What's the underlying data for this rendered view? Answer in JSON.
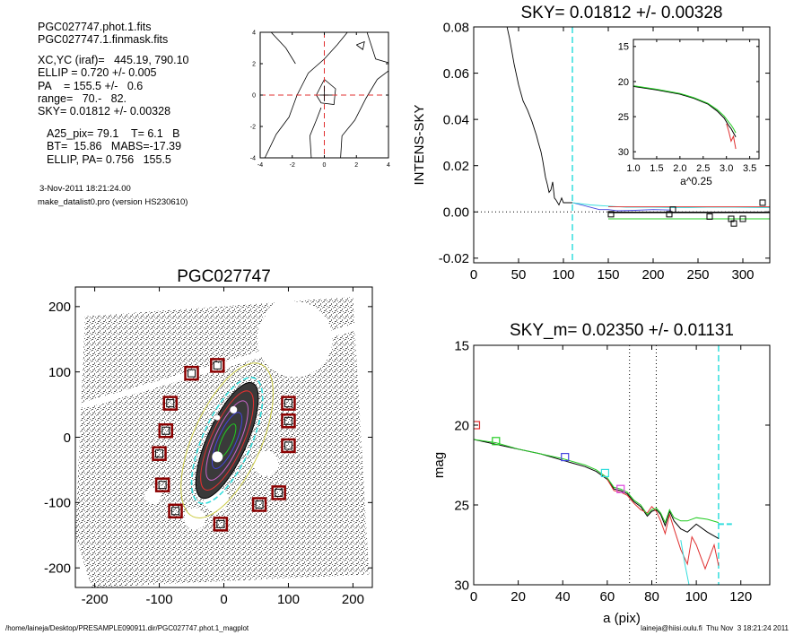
{
  "info": {
    "lines1": [
      "PGC027747.phot.1.fits",
      "PGC027747.1.finmask.fits"
    ],
    "lines2": [
      "XC,YC (iraf)=   445.19, 790.10",
      "ELLIP = 0.720 +/- 0.005",
      "PA    = 155.5 +/-   0.6",
      "range=   70.-   82.",
      "SKY= 0.01812 +/- 0.00328"
    ],
    "lines3": [
      "A25_pix= 79.1    T= 6.1   B",
      "BT=  15.86   MABS=-17.39",
      "ELLIP, PA= 0.756   155.5"
    ],
    "date": "3-Nov-2011 18:21:24.00",
    "program": "make_datalist0.pro (version HS230610)"
  },
  "footer": {
    "left": "/home/laineja/Desktop/PRESAMPLE090911.dir/PGC027747.phot.1_magplot",
    "right": "laineja@hiisi.oulu.fi  Thu Nov  3 18:21:24 2011"
  },
  "colors": {
    "red": "#e03030",
    "green": "#22cc22",
    "blue": "#4444dd",
    "cyan": "#33dddd",
    "magenta": "#dd44dd",
    "mask_box": "#8b0000",
    "grey": "#999999"
  },
  "chart_data": [
    {
      "id": "contour",
      "type": "scatter",
      "xlim": [
        -4,
        4
      ],
      "ylim": [
        -4,
        4
      ],
      "xticks": [
        -4,
        -2,
        0,
        2,
        4
      ],
      "yticks": [
        -4,
        -2,
        0,
        2,
        4
      ],
      "center_lines": {
        "x": 0,
        "y": 0
      }
    },
    {
      "id": "sky",
      "type": "line",
      "title": "SKY= 0.01812 +/- 0.00328",
      "ylabel": "INTENS-SKY",
      "xlim": [
        0,
        330
      ],
      "ylim": [
        -0.022,
        0.08
      ],
      "xticks": [
        0,
        50,
        100,
        150,
        200,
        250,
        300
      ],
      "yticks": [
        -0.02,
        0.0,
        0.02,
        0.04,
        0.06,
        0.08
      ],
      "ytick_labels": [
        "-0.02",
        "0.00",
        "0.02",
        "0.04",
        "0.06",
        "0.08"
      ],
      "vline_cyan": 110,
      "series": [
        {
          "color": "black",
          "x": [
            36,
            40,
            45,
            50,
            55,
            60,
            65,
            70,
            72,
            75,
            77,
            80,
            82,
            84,
            86,
            88,
            90,
            92,
            95,
            98,
            100,
            105,
            110
          ],
          "y": [
            0.082,
            0.075,
            0.064,
            0.055,
            0.048,
            0.044,
            0.039,
            0.033,
            0.03,
            0.026,
            0.022,
            0.015,
            0.012,
            0.0085,
            0.0095,
            0.013,
            0.006,
            0.005,
            0.003,
            0.006,
            0.004,
            0.004,
            0.004
          ]
        },
        {
          "color": "blue",
          "x": [
            110,
            120,
            130,
            140,
            150,
            160,
            180,
            200,
            220
          ],
          "y": [
            0.004,
            0.003,
            0.002,
            0.001,
            0.001,
            0.0005,
            0.0007,
            0.001,
            0.0008
          ]
        },
        {
          "color": "cyan",
          "x": [
            110,
            130,
            150,
            170,
            200,
            230,
            260,
            290,
            330
          ],
          "y": [
            0.004,
            0.003,
            0.0025,
            0.002,
            0.002,
            0.0018,
            0.002,
            0.002,
            0.0018
          ]
        },
        {
          "color": "green",
          "x": [
            150,
            330
          ],
          "y": [
            -0.003,
            -0.003
          ]
        },
        {
          "color": "red",
          "x": [
            150,
            330
          ],
          "y": [
            0.0022,
            0.0022
          ]
        },
        {
          "color": "black",
          "x": [
            150,
            330
          ],
          "y": [
            -0.0002,
            -0.0002
          ]
        }
      ],
      "squares": {
        "x": [
          153,
          218,
          222,
          263,
          287,
          290,
          300,
          322
        ],
        "y": [
          -0.001,
          -0.001,
          0.001,
          -0.002,
          -0.003,
          -0.005,
          -0.003,
          0.004
        ]
      },
      "inset": {
        "xlabel": "a^0.25",
        "xlim": [
          1.0,
          3.7
        ],
        "ylim": [
          31,
          14
        ],
        "xticks": [
          1.0,
          1.5,
          2.0,
          2.5,
          3.0,
          3.5
        ],
        "xtick_labels": [
          "1.0",
          "1.5",
          "2.0",
          "2.5",
          "3.0",
          "3.5"
        ],
        "yticks": [
          15,
          20,
          25,
          30
        ],
        "series": [
          {
            "color": "black",
            "x": [
              1.0,
              1.5,
              2.0,
              2.3,
              2.6,
              2.8,
              2.95,
              3.05,
              3.1,
              3.15,
              3.2
            ],
            "y": [
              20.7,
              21.2,
              21.8,
              22.4,
              23.2,
              24.2,
              25.2,
              26.3,
              26.7,
              27.3,
              27.9
            ]
          },
          {
            "color": "red",
            "x": [
              3.0,
              3.05,
              3.1,
              3.15,
              3.2
            ],
            "y": [
              26.0,
              27.1,
              28.5,
              27.8,
              29.6
            ]
          },
          {
            "color": "green",
            "x": [
              1.0,
              1.5,
              2.0,
              2.3,
              2.6,
              2.8,
              2.95,
              3.05,
              3.1,
              3.15,
              3.2
            ],
            "y": [
              20.6,
              21.1,
              21.7,
              22.3,
              23.1,
              24.0,
              24.9,
              25.8,
              26.2,
              26.7,
              27.3
            ]
          }
        ]
      }
    },
    {
      "id": "image",
      "type": "scatter",
      "title": "PGC027747",
      "xlim": [
        -230,
        230
      ],
      "ylim": [
        -230,
        230
      ],
      "xticks": [
        -200,
        -100,
        0,
        100,
        200
      ],
      "yticks": [
        -200,
        -100,
        0,
        100,
        200
      ],
      "mask_boxes": {
        "x": [
          -50,
          -10,
          -83,
          -90,
          -100,
          -95,
          -75,
          -5,
          55,
          100,
          100,
          100,
          85
        ],
        "y": [
          98,
          110,
          52,
          10,
          -25,
          -73,
          -113,
          -133,
          -103,
          52,
          25,
          -13,
          -85
        ]
      }
    },
    {
      "id": "mag",
      "type": "line",
      "title": "SKY_m=  0.02350 +/- 0.01131",
      "xlabel": "a (pix)",
      "ylabel": "mag",
      "xlim": [
        0,
        133
      ],
      "ylim": [
        30,
        15
      ],
      "xticks": [
        0,
        20,
        40,
        60,
        80,
        100,
        120
      ],
      "yticks": [
        15,
        20,
        25,
        30
      ],
      "vlines_dotted": [
        70,
        82
      ],
      "vline_cyan": 110,
      "series": [
        {
          "color": "black",
          "x": [
            0,
            10,
            20,
            30,
            40,
            50,
            55,
            60,
            63,
            66,
            69,
            72,
            75,
            78,
            80,
            82,
            84,
            86,
            88,
            90,
            93,
            96,
            100,
            105,
            110
          ],
          "y": [
            20.9,
            21.2,
            21.5,
            21.8,
            22.2,
            22.6,
            22.9,
            23.4,
            24.0,
            24.1,
            24.3,
            24.8,
            25.1,
            25.7,
            25.4,
            25.3,
            25.6,
            26.3,
            25.4,
            26.0,
            26.5,
            26.7,
            26.2,
            26.7,
            27.1
          ]
        },
        {
          "color": "red",
          "x": [
            60,
            63,
            66,
            69,
            72,
            75,
            78,
            80,
            82,
            84,
            86,
            88,
            90,
            93,
            96,
            98,
            100,
            104,
            108,
            110
          ],
          "y": [
            23.4,
            24.1,
            24.2,
            24.4,
            24.9,
            25.3,
            25.5,
            25.1,
            25.4,
            26.0,
            26.8,
            25.6,
            26.5,
            27.8,
            28.7,
            27.0,
            27.5,
            29.0,
            27.5,
            28.8
          ]
        },
        {
          "color": "green",
          "x": [
            0,
            10,
            20,
            30,
            40,
            50,
            55,
            60,
            63,
            66,
            69,
            72,
            75,
            78,
            80,
            82,
            84,
            86,
            88,
            90,
            93,
            96,
            100,
            105,
            110
          ],
          "y": [
            20.9,
            21.1,
            21.5,
            21.8,
            22.1,
            22.5,
            22.8,
            23.3,
            23.9,
            24.0,
            24.2,
            24.7,
            25.0,
            25.6,
            25.3,
            25.2,
            25.5,
            26.1,
            25.3,
            25.8,
            26.0,
            26.0,
            25.8,
            25.9,
            26.1
          ]
        }
      ],
      "cyan_tail": {
        "x": [
          110,
          116
        ],
        "y": [
          26.2,
          26.2
        ]
      },
      "squares": [
        {
          "x": 1,
          "y": 20.0,
          "color": "red"
        },
        {
          "x": 10,
          "y": 21.0,
          "color": "green"
        },
        {
          "x": 41,
          "y": 22.0,
          "color": "blue"
        },
        {
          "x": 59,
          "y": 23.0,
          "color": "cyan"
        },
        {
          "x": 66,
          "y": 24.0,
          "color": "magenta"
        }
      ]
    }
  ]
}
